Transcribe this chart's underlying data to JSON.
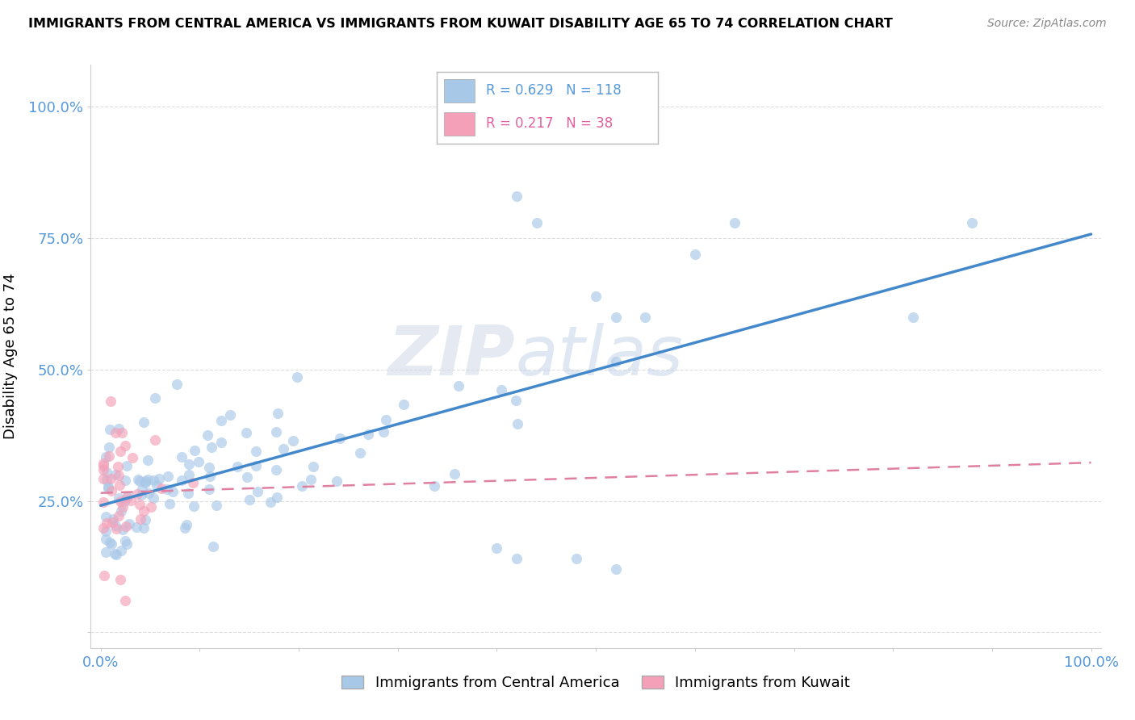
{
  "title": "IMMIGRANTS FROM CENTRAL AMERICA VS IMMIGRANTS FROM KUWAIT DISABILITY AGE 65 TO 74 CORRELATION CHART",
  "source": "Source: ZipAtlas.com",
  "ylabel": "Disability Age 65 to 74",
  "legend_label1": "Immigrants from Central America",
  "legend_label2": "Immigrants from Kuwait",
  "legend_R1": "0.629",
  "legend_N1": "118",
  "legend_R2": "0.217",
  "legend_N2": "38",
  "color_blue": "#a8c8e8",
  "color_pink": "#f4a0b8",
  "color_blue_line": "#4488cc",
  "color_pink_line": "#e080a0",
  "watermark_zip": "ZIP",
  "watermark_atlas": "atlas",
  "bg_color": "#ffffff",
  "grid_color": "#dddddd",
  "tick_color": "#5599dd",
  "spine_color": "#cccccc"
}
